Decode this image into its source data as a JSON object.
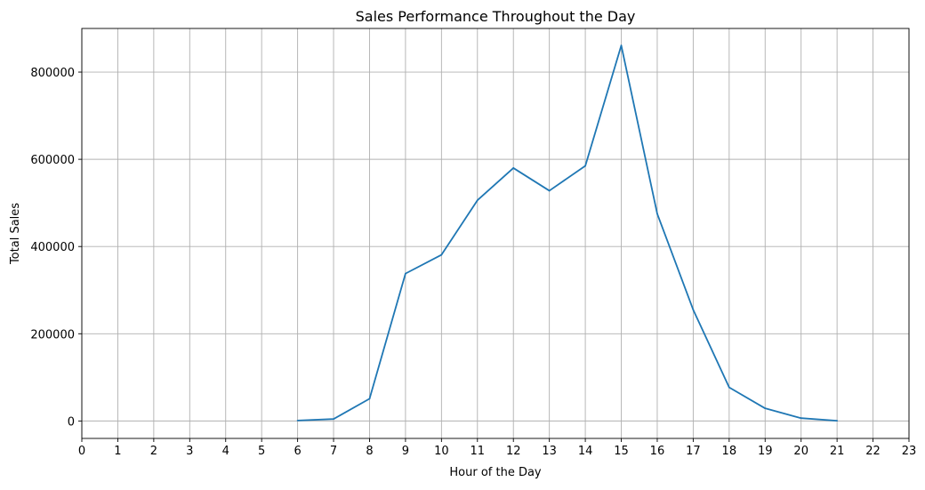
{
  "chart_data": {
    "type": "line",
    "title": "Sales Performance Throughout the Day",
    "xlabel": "Hour of the Day",
    "ylabel": "Total Sales",
    "xlim": [
      0,
      23
    ],
    "ylim": [
      -40000,
      900000
    ],
    "x_ticks": [
      "0",
      "1",
      "2",
      "3",
      "4",
      "5",
      "6",
      "7",
      "8",
      "9",
      "10",
      "11",
      "12",
      "13",
      "14",
      "15",
      "16",
      "17",
      "18",
      "19",
      "20",
      "21",
      "22",
      "23"
    ],
    "y_ticks": [
      "0",
      "200000",
      "400000",
      "600000",
      "800000"
    ],
    "grid": true,
    "line_color": "#1f77b4",
    "series": [
      {
        "x": [
          6,
          7,
          8,
          9,
          10,
          11,
          12,
          13,
          14,
          15,
          16,
          17,
          18,
          19,
          20,
          21
        ],
        "values": [
          1000,
          4500,
          51000,
          338000,
          381000,
          506000,
          580000,
          528000,
          585000,
          861000,
          475000,
          255000,
          77000,
          29000,
          6500,
          500
        ]
      }
    ]
  }
}
